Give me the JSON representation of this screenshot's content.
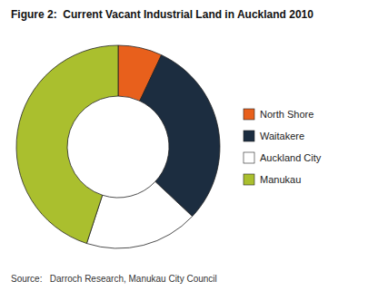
{
  "chart_data": {
    "type": "donut",
    "title": "Figure 2:  Current Vacant Industrial Land in Auckland 2010",
    "categories": [
      "North Shore",
      "Waitakere",
      "Auckland City",
      "Manukau"
    ],
    "values": [
      7,
      30,
      18,
      45
    ],
    "colors": [
      "#E8601C",
      "#1C2D40",
      "#FFFFFF",
      "#AABF2E"
    ],
    "annotations": [
      "Source:   Darroch Research, Manukau City Council"
    ],
    "legend": "right"
  }
}
